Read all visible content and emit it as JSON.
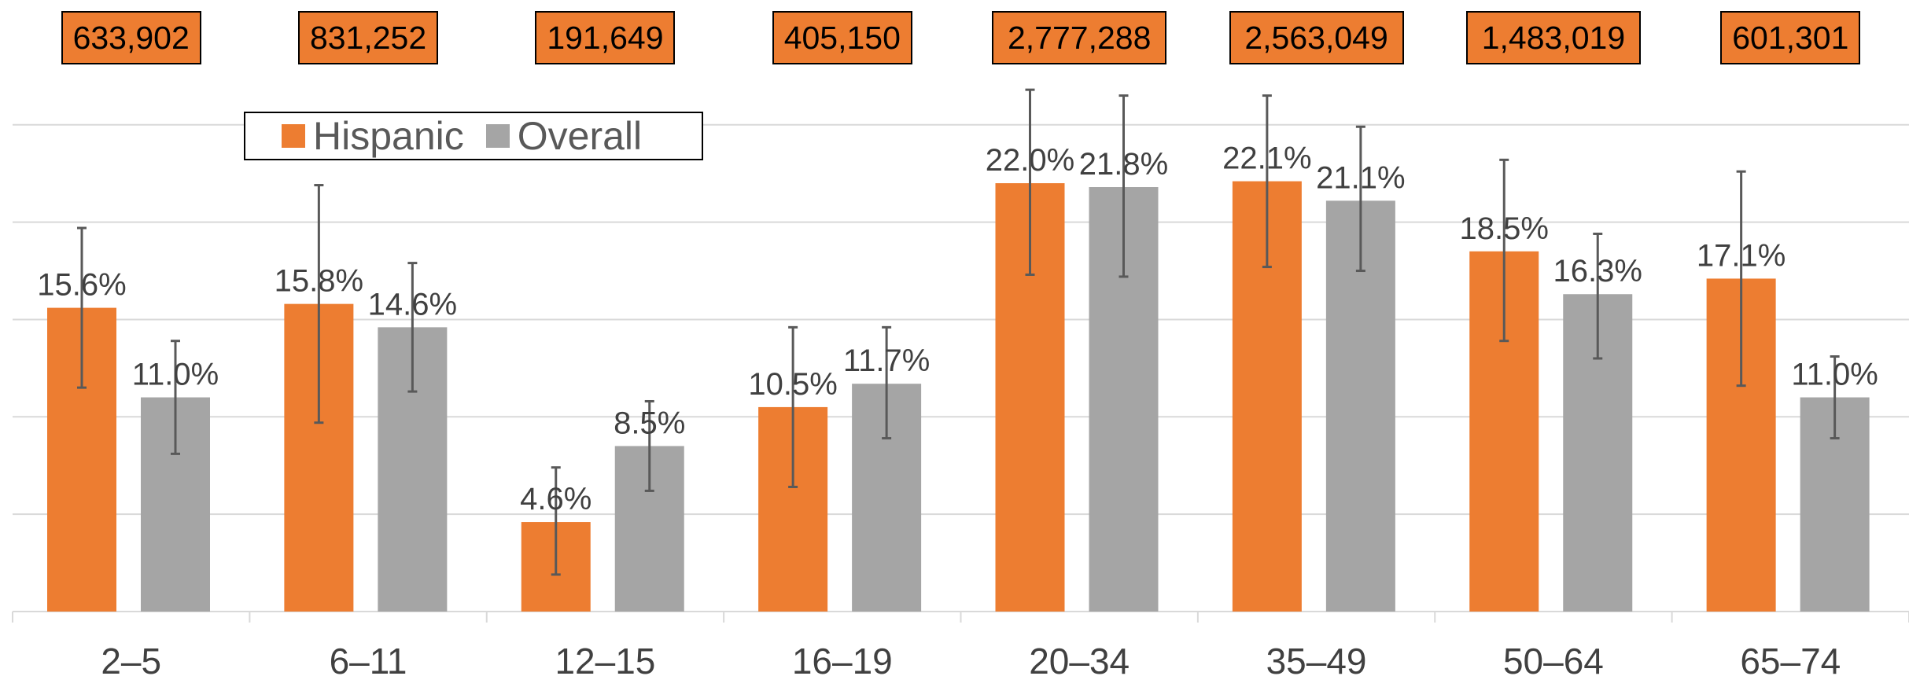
{
  "chart_data": {
    "type": "bar",
    "categories": [
      "2–5",
      "6–11",
      "12–15",
      "16–19",
      "20–34",
      "35–49",
      "50–64",
      "65–74"
    ],
    "sample_counts": [
      "633,902",
      "831,252",
      "191,649",
      "405,150",
      "2,777,288",
      "2,563,049",
      "1,483,019",
      "601,301"
    ],
    "series": [
      {
        "name": "Hispanic",
        "color": "#ED7D31",
        "values": [
          15.6,
          15.8,
          4.6,
          10.5,
          22.0,
          22.1,
          18.5,
          17.1
        ],
        "labels": [
          "15.6%",
          "15.8%",
          "4.6%",
          "10.5%",
          "22.0%",
          "22.1%",
          "18.5%",
          "17.1%"
        ],
        "error_low": [
          11.5,
          9.7,
          1.9,
          6.4,
          17.3,
          17.7,
          13.9,
          11.6
        ],
        "error_high": [
          19.7,
          21.9,
          7.4,
          14.6,
          26.8,
          26.5,
          23.2,
          22.6
        ]
      },
      {
        "name": "Overall",
        "color": "#A5A5A5",
        "values": [
          11.0,
          14.6,
          8.5,
          11.7,
          21.8,
          21.1,
          16.3,
          11.0
        ],
        "labels": [
          "11.0%",
          "14.6%",
          "8.5%",
          "11.7%",
          "21.8%",
          "21.1%",
          "16.3%",
          "11.0%"
        ],
        "error_low": [
          8.1,
          11.3,
          6.2,
          8.9,
          17.2,
          17.5,
          13.0,
          8.9
        ],
        "error_high": [
          13.9,
          17.9,
          10.8,
          14.6,
          26.5,
          24.9,
          19.4,
          13.1
        ]
      }
    ],
    "ylim": [
      -2,
      27
    ],
    "gridlines": [
      0,
      5,
      10,
      15,
      20,
      25
    ],
    "grid": true,
    "legend_position": "top-left",
    "title": "",
    "xlabel": "",
    "ylabel": ""
  }
}
